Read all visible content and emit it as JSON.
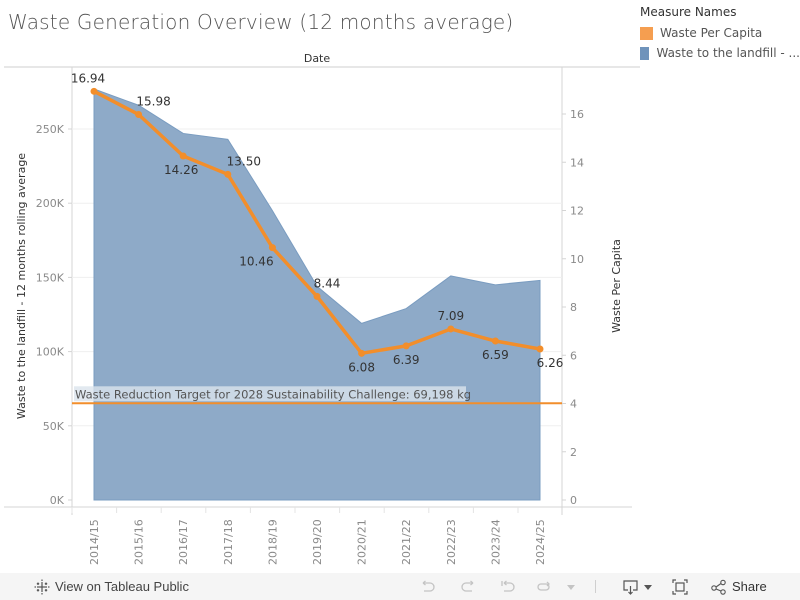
{
  "title": "Waste Generation Overview (12 months average)",
  "legend": {
    "title": "Measure Names",
    "items": [
      {
        "label": "Waste Per Capita",
        "color": "#f59e50"
      },
      {
        "label": "Waste to the landfill - ...",
        "color": "#6f93bb"
      }
    ]
  },
  "chart_data": {
    "type": "area",
    "title": "Waste Generation Overview (12 months average)",
    "xlabel": "Date",
    "categories": [
      "2014/15",
      "2015/16",
      "2016/17",
      "2017/18",
      "2018/19",
      "2019/20",
      "2020/21",
      "2021/22",
      "2022/23",
      "2023/24",
      "2024/25"
    ],
    "series": [
      {
        "name": "Waste to the landfill - 12 months rolling average",
        "type": "area",
        "axis": "left",
        "color": "#8eaac8",
        "values": [
          277000,
          266000,
          247000,
          243000,
          195000,
          144000,
          119000,
          129000,
          151000,
          145000,
          148000
        ]
      },
      {
        "name": "Waste Per Capita",
        "type": "line",
        "axis": "right",
        "color": "#f28e2b",
        "values": [
          16.94,
          15.98,
          14.26,
          13.5,
          10.46,
          8.44,
          6.08,
          6.39,
          7.09,
          6.59,
          6.26
        ],
        "labels": [
          "16.94",
          "15.98",
          "14.26",
          "13.50",
          "10.46",
          "8.44",
          "6.08",
          "6.39",
          "7.09",
          "6.59",
          "6.26"
        ]
      }
    ],
    "left_axis": {
      "label": "Waste to the landfill - 12 months rolling average",
      "ylim": [
        0,
        280000
      ],
      "ticks": [
        0,
        50000,
        100000,
        150000,
        200000,
        250000
      ],
      "tick_labels": [
        "0K",
        "50K",
        "100K",
        "150K",
        "200K",
        "250K"
      ]
    },
    "right_axis": {
      "label": "Waste Per Capita",
      "ylim": [
        0,
        17.5
      ],
      "ticks": [
        0,
        2,
        4,
        6,
        8,
        10,
        12,
        14,
        16
      ],
      "tick_labels": [
        "0",
        "2",
        "4",
        "6",
        "8",
        "10",
        "12",
        "14",
        "16"
      ]
    },
    "reference_line": {
      "value": 69198,
      "axis": "left",
      "label": "Waste Reduction Target for 2028 Sustainability Challenge: 69,198 kg",
      "color": "#f28e2b"
    },
    "grid": true,
    "legend_position": "top-right"
  },
  "toolbar": {
    "view_on_public": "View on Tableau Public",
    "share": "Share"
  }
}
